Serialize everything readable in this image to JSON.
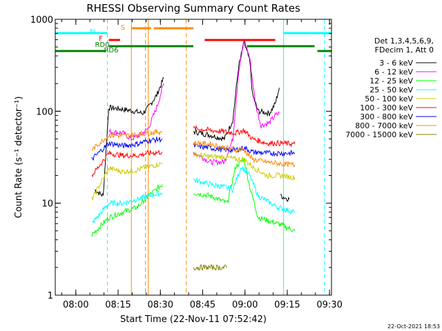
{
  "chart_data": {
    "type": "line",
    "title": "RHESSI Observing Summary Count Rates",
    "ylabel": "Count Rate (s⁻¹ detector⁻¹)",
    "xlabel": "Start Time (22-Nov-11 07:52:42)",
    "footer": "22-Oct-2021 18:53",
    "y_scale": "log",
    "ylim": [
      1,
      1000
    ],
    "xlim_minutes": [
      0,
      98
    ],
    "y_ticks": [
      {
        "value": 1,
        "label": "1"
      },
      {
        "value": 10,
        "label": "10"
      },
      {
        "value": 100,
        "label": "100"
      },
      {
        "value": 1000,
        "label": "1000"
      }
    ],
    "x_ticks": [
      {
        "minute": 7.3,
        "label": "08:00"
      },
      {
        "minute": 22.3,
        "label": "08:15"
      },
      {
        "minute": 37.3,
        "label": "08:30"
      },
      {
        "minute": 52.3,
        "label": "08:45"
      },
      {
        "minute": 67.3,
        "label": "09:00"
      },
      {
        "minute": 82.3,
        "label": "09:15"
      },
      {
        "minute": 97.3,
        "label": "09:30"
      }
    ],
    "legend": {
      "header": [
        "Det 1,3,4,5,6,9,",
        "FDecim 1, Att 0"
      ],
      "position": "right"
    },
    "series": [
      {
        "name": "3 - 6 keV",
        "color": "#000000",
        "segments": [
          [
            [
              14.0,
              14
            ],
            [
              17.0,
              12
            ],
            [
              19.0,
              110
            ],
            [
              24.0,
              105
            ],
            [
              28.0,
              100
            ],
            [
              31.0,
              95
            ],
            [
              33.0,
              110
            ],
            [
              36.0,
              150
            ],
            [
              38.5,
              230
            ]
          ],
          [
            [
              49.0,
              60
            ],
            [
              55.0,
              55
            ],
            [
              60.0,
              50
            ],
            [
              63.0,
              80
            ],
            [
              65.0,
              300
            ],
            [
              67.0,
              560
            ],
            [
              69.0,
              350
            ],
            [
              70.0,
              150
            ],
            [
              72.0,
              100
            ],
            [
              76.0,
              95
            ],
            [
              78.0,
              120
            ],
            [
              79.5,
              180
            ]
          ],
          [
            [
              80.0,
              12
            ],
            [
              83.0,
              11
            ]
          ]
        ]
      },
      {
        "name": "6 - 12 keV",
        "color": "#ff00ff",
        "segments": [
          [
            [
              19.0,
              60
            ],
            [
              24.0,
              58
            ],
            [
              27.0,
              50
            ],
            [
              30.0,
              55
            ],
            [
              33.0,
              65
            ],
            [
              36.0,
              110
            ],
            [
              38.5,
              200
            ]
          ],
          [
            [
              49.0,
              36
            ],
            [
              55.0,
              28
            ],
            [
              60.0,
              28
            ],
            [
              63.0,
              50
            ],
            [
              65.0,
              260
            ],
            [
              67.0,
              600
            ],
            [
              69.0,
              380
            ],
            [
              71.0,
              120
            ],
            [
              73.0,
              70
            ],
            [
              76.0,
              75
            ],
            [
              78.0,
              90
            ],
            [
              79.5,
              95
            ]
          ]
        ]
      },
      {
        "name": "12 - 25 keV",
        "color": "#00ff00",
        "segments": [
          [
            [
              13.0,
              4.5
            ],
            [
              19.0,
              7
            ],
            [
              24.0,
              8
            ],
            [
              29.0,
              9
            ],
            [
              33.0,
              12
            ],
            [
              38.0,
              16
            ]
          ],
          [
            [
              49.0,
              13
            ],
            [
              55.0,
              12
            ],
            [
              61.0,
              10
            ],
            [
              64.0,
              25
            ],
            [
              67.0,
              30
            ],
            [
              69.0,
              15
            ],
            [
              72.0,
              7
            ],
            [
              79.0,
              6
            ],
            [
              85.0,
              5
            ]
          ]
        ]
      },
      {
        "name": "25 - 50 keV",
        "color": "#00ffff",
        "segments": [
          [
            [
              13.0,
              6
            ],
            [
              19.0,
              10
            ],
            [
              24.0,
              10
            ],
            [
              29.0,
              11
            ],
            [
              33.0,
              12
            ],
            [
              38.0,
              13
            ]
          ],
          [
            [
              49.0,
              18
            ],
            [
              55.0,
              16
            ],
            [
              60.0,
              15
            ],
            [
              63.0,
              14
            ],
            [
              66.0,
              25
            ],
            [
              69.0,
              20
            ],
            [
              72.0,
              12
            ],
            [
              79.0,
              9
            ],
            [
              85.0,
              8
            ]
          ]
        ]
      },
      {
        "name": "50 - 100 keV",
        "color": "#cccc00",
        "segments": [
          [
            [
              13.0,
              11
            ],
            [
              19.0,
              24
            ],
            [
              24.0,
              22
            ],
            [
              29.0,
              23
            ],
            [
              33.0,
              25
            ],
            [
              38.0,
              27
            ]
          ],
          [
            [
              49.0,
              34
            ],
            [
              55.0,
              32
            ],
            [
              60.0,
              32
            ],
            [
              64.0,
              30
            ],
            [
              67.0,
              30
            ],
            [
              70.0,
              25
            ],
            [
              75.0,
              20
            ],
            [
              79.0,
              20
            ],
            [
              85.0,
              19
            ]
          ]
        ]
      },
      {
        "name": "100 - 300 keV",
        "color": "#ff0000",
        "segments": [
          [
            [
              13.0,
              20
            ],
            [
              19.0,
              35
            ],
            [
              24.0,
              33
            ],
            [
              29.0,
              33
            ],
            [
              33.0,
              35
            ],
            [
              38.0,
              36
            ]
          ],
          [
            [
              49.0,
              65
            ],
            [
              55.0,
              62
            ],
            [
              60.0,
              60
            ],
            [
              64.0,
              58
            ],
            [
              67.0,
              62
            ],
            [
              70.0,
              50
            ],
            [
              75.0,
              45
            ],
            [
              79.0,
              45
            ],
            [
              85.0,
              44
            ]
          ]
        ]
      },
      {
        "name": "300 - 800 keV",
        "color": "#0000ff",
        "segments": [
          [
            [
              13.0,
              30
            ],
            [
              19.0,
              45
            ],
            [
              24.0,
              42
            ],
            [
              29.0,
              44
            ],
            [
              33.0,
              48
            ],
            [
              38.0,
              50
            ]
          ],
          [
            [
              49.0,
              42
            ],
            [
              55.0,
              40
            ],
            [
              60.0,
              38
            ],
            [
              64.0,
              38
            ],
            [
              67.0,
              40
            ],
            [
              70.0,
              36
            ],
            [
              75.0,
              35
            ],
            [
              79.0,
              35
            ],
            [
              85.0,
              35
            ]
          ]
        ]
      },
      {
        "name": "800 - 7000 keV",
        "color": "#ff8800",
        "segments": [
          [
            [
              13.0,
              38
            ],
            [
              19.0,
              55
            ],
            [
              24.0,
              54
            ],
            [
              29.0,
              56
            ],
            [
              33.0,
              58
            ],
            [
              38.0,
              60
            ]
          ],
          [
            [
              49.0,
              45
            ],
            [
              55.0,
              44
            ],
            [
              60.0,
              40
            ],
            [
              64.0,
              38
            ],
            [
              67.0,
              38
            ],
            [
              70.0,
              30
            ],
            [
              75.0,
              28
            ],
            [
              79.0,
              27
            ],
            [
              85.0,
              26
            ]
          ]
        ]
      },
      {
        "name": "7000 - 15000 keV",
        "color": "#808000",
        "segments": [
          [
            [
              49.0,
              2
            ],
            [
              61.0,
              2
            ]
          ]
        ]
      }
    ],
    "state_bars": [
      {
        "label": "N",
        "color": "#00ffff",
        "segments": [
          [
            0,
            18.5
          ],
          [
            81.0,
            98
          ]
        ]
      },
      {
        "label": "F",
        "color": "#ff0000",
        "segments": [
          [
            19.0,
            23.0
          ],
          [
            53.0,
            78.0
          ]
        ]
      },
      {
        "label": "S",
        "color": "#ff8800",
        "segments": [
          [
            27.0,
            34.0
          ],
          [
            35.0,
            49.0
          ]
        ]
      },
      {
        "label": "RD0",
        "color": "#008000",
        "segments": [
          [
            19.0,
            49.0
          ],
          [
            68.0,
            92.0
          ]
        ]
      },
      {
        "label": "RD6",
        "color": "#008000",
        "segments": [
          [
            0,
            18.0
          ],
          [
            93.0,
            98
          ]
        ]
      }
    ],
    "vlines": [
      {
        "minute": 18.5,
        "color": "#00ffff",
        "style": "dashed"
      },
      {
        "minute": 81.0,
        "color": "#00ffff",
        "style": "solid"
      },
      {
        "minute": 95.5,
        "color": "#00ffff",
        "style": "dashed"
      },
      {
        "minute": 0.0,
        "color": "#00ffff",
        "style": "solid"
      },
      {
        "minute": 27.0,
        "color": "#ff8800",
        "style": "solid"
      },
      {
        "minute": 32.0,
        "color": "#ff8800",
        "style": "dashed"
      },
      {
        "minute": 33.0,
        "color": "#ff8800",
        "style": "solid"
      },
      {
        "minute": 46.5,
        "color": "#ff8800",
        "style": "dashed"
      }
    ]
  }
}
